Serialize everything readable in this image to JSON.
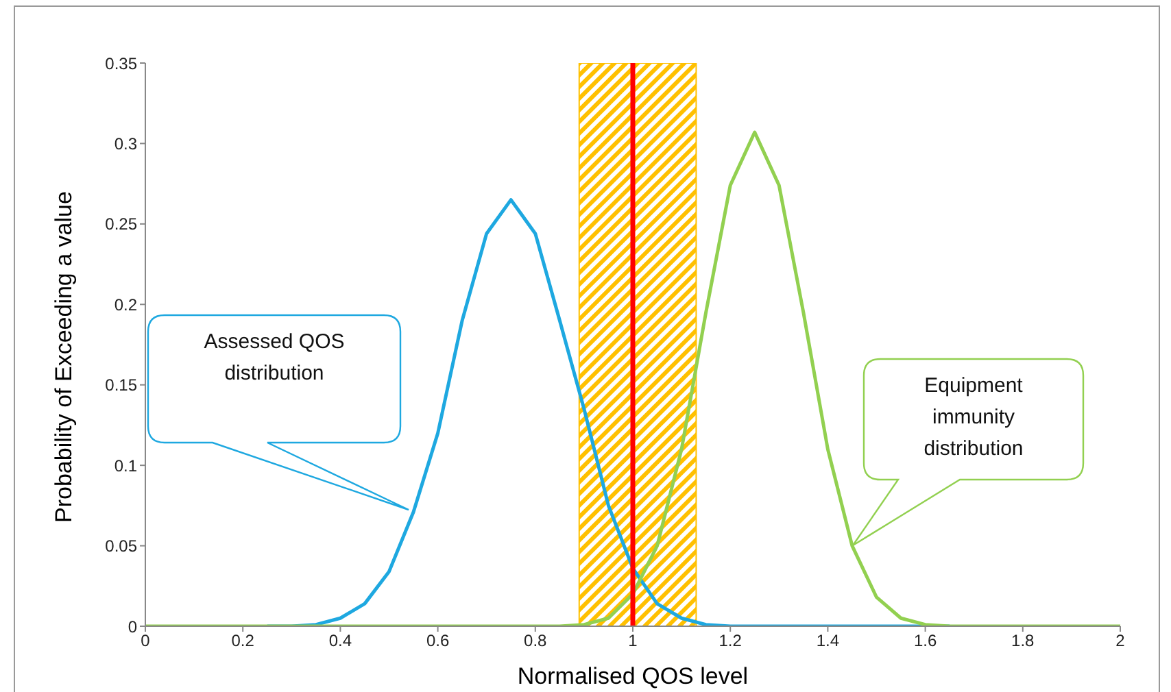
{
  "chart_data": {
    "type": "line",
    "xlabel": "Normalised QOS level",
    "ylabel": "Probability of Exceeding a value",
    "x": [
      0,
      0.05,
      0.1,
      0.15,
      0.2,
      0.25,
      0.3,
      0.35,
      0.4,
      0.45,
      0.5,
      0.55,
      0.6,
      0.65,
      0.7,
      0.75,
      0.8,
      0.85,
      0.9,
      0.95,
      1,
      1.05,
      1.1,
      1.15,
      1.2,
      1.25,
      1.3,
      1.35,
      1.4,
      1.45,
      1.5,
      1.55,
      1.6,
      1.65,
      1.7,
      1.75,
      1.8,
      1.85,
      1.9,
      1.95,
      2
    ],
    "series": [
      {
        "color": "#1ea8e0",
        "values": [
          null,
          null,
          null,
          null,
          null,
          0,
          0,
          0.001,
          0.005,
          0.014,
          0.034,
          0.071,
          0.12,
          0.19,
          0.244,
          0.265,
          0.244,
          0.19,
          0.135,
          0.075,
          0.036,
          0.014,
          0.005,
          0.001,
          0,
          0,
          0,
          0,
          0,
          0,
          0,
          0,
          0,
          0,
          null,
          null,
          null,
          null,
          null,
          null,
          null
        ]
      },
      {
        "color": "#92d050",
        "values": [
          0,
          0,
          0,
          0,
          0,
          0,
          0,
          0,
          0,
          0,
          0,
          0,
          0,
          0,
          0,
          0,
          0,
          0,
          0.001,
          0.005,
          0.02,
          0.05,
          0.11,
          0.195,
          0.274,
          0.307,
          0.274,
          0.195,
          0.11,
          0.05,
          0.018,
          0.005,
          0.001,
          0,
          0,
          0,
          0,
          0,
          0,
          0,
          0
        ]
      }
    ],
    "xlim": [
      0,
      2
    ],
    "xticks": [
      0,
      0.2,
      0.4,
      0.6,
      0.8,
      1,
      1.2,
      1.4,
      1.6,
      1.8,
      2
    ],
    "ylim": [
      0,
      0.35
    ],
    "yticks": [
      0,
      0.05,
      0.1,
      0.15,
      0.2,
      0.25,
      0.3,
      0.35
    ],
    "grid": false,
    "legend": false,
    "marker": "none",
    "line_style": "solid",
    "ref_lines": [
      {
        "axis": "x",
        "value": 1,
        "color": "#ff0000"
      }
    ],
    "bands": [
      {
        "axis": "x",
        "from": 0.89,
        "to": 1.13,
        "color": "#ffc000"
      }
    ],
    "annotations": [
      "Assessed QOS distribution",
      "Equipment immunity distribution"
    ]
  }
}
